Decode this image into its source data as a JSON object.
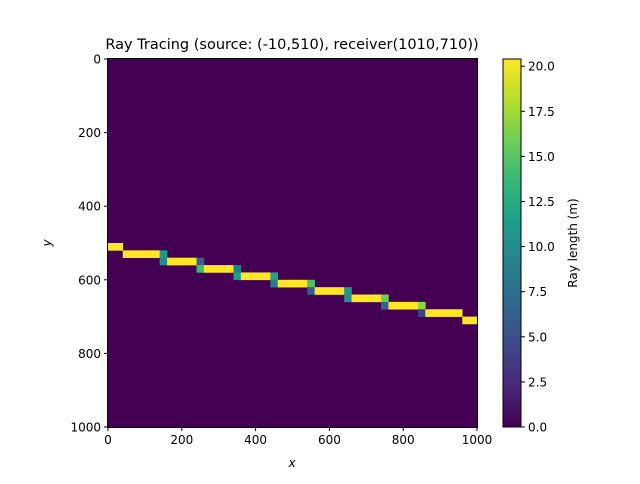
{
  "chart_data": {
    "type": "heatmap",
    "title": "Ray Tracing (source: (-10,510), receiver(1010,710))",
    "xlabel": "x",
    "ylabel": "y",
    "xlim": [
      0,
      1000
    ],
    "ylim": [
      1000,
      0
    ],
    "y_inverted": true,
    "grid": false,
    "cell_size": 20,
    "background_value": 0.0,
    "x_ticks": [
      "0",
      "200",
      "400",
      "600",
      "800",
      "1000"
    ],
    "y_ticks": [
      "0",
      "200",
      "400",
      "600",
      "800",
      "1000"
    ],
    "colorbar": {
      "label": "Ray length (m)",
      "range": [
        0.0,
        20.4
      ],
      "colormap": "viridis",
      "ticks": [
        "0.0",
        "2.5",
        "5.0",
        "7.5",
        "10.0",
        "12.5",
        "15.0",
        "17.5",
        "20.0"
      ]
    },
    "cells": [
      {
        "x": 0,
        "y": 500,
        "value": 20.4
      },
      {
        "x": 20,
        "y": 500,
        "value": 20.4
      },
      {
        "x": 40,
        "y": 520,
        "value": 20.4
      },
      {
        "x": 60,
        "y": 520,
        "value": 20.4
      },
      {
        "x": 80,
        "y": 520,
        "value": 20.4
      },
      {
        "x": 100,
        "y": 520,
        "value": 20.4
      },
      {
        "x": 120,
        "y": 520,
        "value": 20.4
      },
      {
        "x": 140,
        "y": 520,
        "value": 11.0
      },
      {
        "x": 140,
        "y": 540,
        "value": 10.0
      },
      {
        "x": 160,
        "y": 540,
        "value": 20.4
      },
      {
        "x": 180,
        "y": 540,
        "value": 20.4
      },
      {
        "x": 200,
        "y": 540,
        "value": 20.4
      },
      {
        "x": 220,
        "y": 540,
        "value": 20.4
      },
      {
        "x": 240,
        "y": 540,
        "value": 6.0
      },
      {
        "x": 240,
        "y": 560,
        "value": 14.0
      },
      {
        "x": 260,
        "y": 560,
        "value": 20.4
      },
      {
        "x": 280,
        "y": 560,
        "value": 20.4
      },
      {
        "x": 300,
        "y": 560,
        "value": 20.4
      },
      {
        "x": 320,
        "y": 560,
        "value": 20.4
      },
      {
        "x": 340,
        "y": 560,
        "value": 9.0
      },
      {
        "x": 340,
        "y": 580,
        "value": 11.5
      },
      {
        "x": 360,
        "y": 580,
        "value": 20.4
      },
      {
        "x": 380,
        "y": 580,
        "value": 20.4
      },
      {
        "x": 400,
        "y": 580,
        "value": 20.4
      },
      {
        "x": 420,
        "y": 580,
        "value": 20.4
      },
      {
        "x": 440,
        "y": 580,
        "value": 12.0
      },
      {
        "x": 440,
        "y": 600,
        "value": 8.5
      },
      {
        "x": 460,
        "y": 600,
        "value": 20.4
      },
      {
        "x": 480,
        "y": 600,
        "value": 20.4
      },
      {
        "x": 500,
        "y": 600,
        "value": 20.4
      },
      {
        "x": 520,
        "y": 600,
        "value": 20.4
      },
      {
        "x": 540,
        "y": 600,
        "value": 14.5
      },
      {
        "x": 540,
        "y": 620,
        "value": 6.0
      },
      {
        "x": 560,
        "y": 620,
        "value": 20.4
      },
      {
        "x": 580,
        "y": 620,
        "value": 20.4
      },
      {
        "x": 600,
        "y": 620,
        "value": 20.4
      },
      {
        "x": 620,
        "y": 620,
        "value": 20.4
      },
      {
        "x": 640,
        "y": 620,
        "value": 10.5
      },
      {
        "x": 640,
        "y": 640,
        "value": 10.0
      },
      {
        "x": 660,
        "y": 640,
        "value": 20.4
      },
      {
        "x": 680,
        "y": 640,
        "value": 20.4
      },
      {
        "x": 700,
        "y": 640,
        "value": 20.4
      },
      {
        "x": 720,
        "y": 640,
        "value": 20.4
      },
      {
        "x": 740,
        "y": 640,
        "value": 16.0
      },
      {
        "x": 740,
        "y": 660,
        "value": 6.5
      },
      {
        "x": 760,
        "y": 660,
        "value": 20.4
      },
      {
        "x": 780,
        "y": 660,
        "value": 20.4
      },
      {
        "x": 800,
        "y": 660,
        "value": 20.4
      },
      {
        "x": 820,
        "y": 660,
        "value": 20.4
      },
      {
        "x": 840,
        "y": 660,
        "value": 17.0
      },
      {
        "x": 840,
        "y": 680,
        "value": 4.0
      },
      {
        "x": 860,
        "y": 680,
        "value": 20.4
      },
      {
        "x": 880,
        "y": 680,
        "value": 20.4
      },
      {
        "x": 900,
        "y": 680,
        "value": 20.4
      },
      {
        "x": 920,
        "y": 680,
        "value": 20.4
      },
      {
        "x": 940,
        "y": 680,
        "value": 20.4
      },
      {
        "x": 960,
        "y": 700,
        "value": 20.4
      },
      {
        "x": 980,
        "y": 700,
        "value": 20.4
      }
    ]
  },
  "colors": {
    "background": "#440154",
    "viridis": [
      "#440154",
      "#482878",
      "#3e4989",
      "#31688e",
      "#26828e",
      "#1f9e89",
      "#35b779",
      "#6ece58",
      "#b5de2b",
      "#fde725"
    ]
  }
}
